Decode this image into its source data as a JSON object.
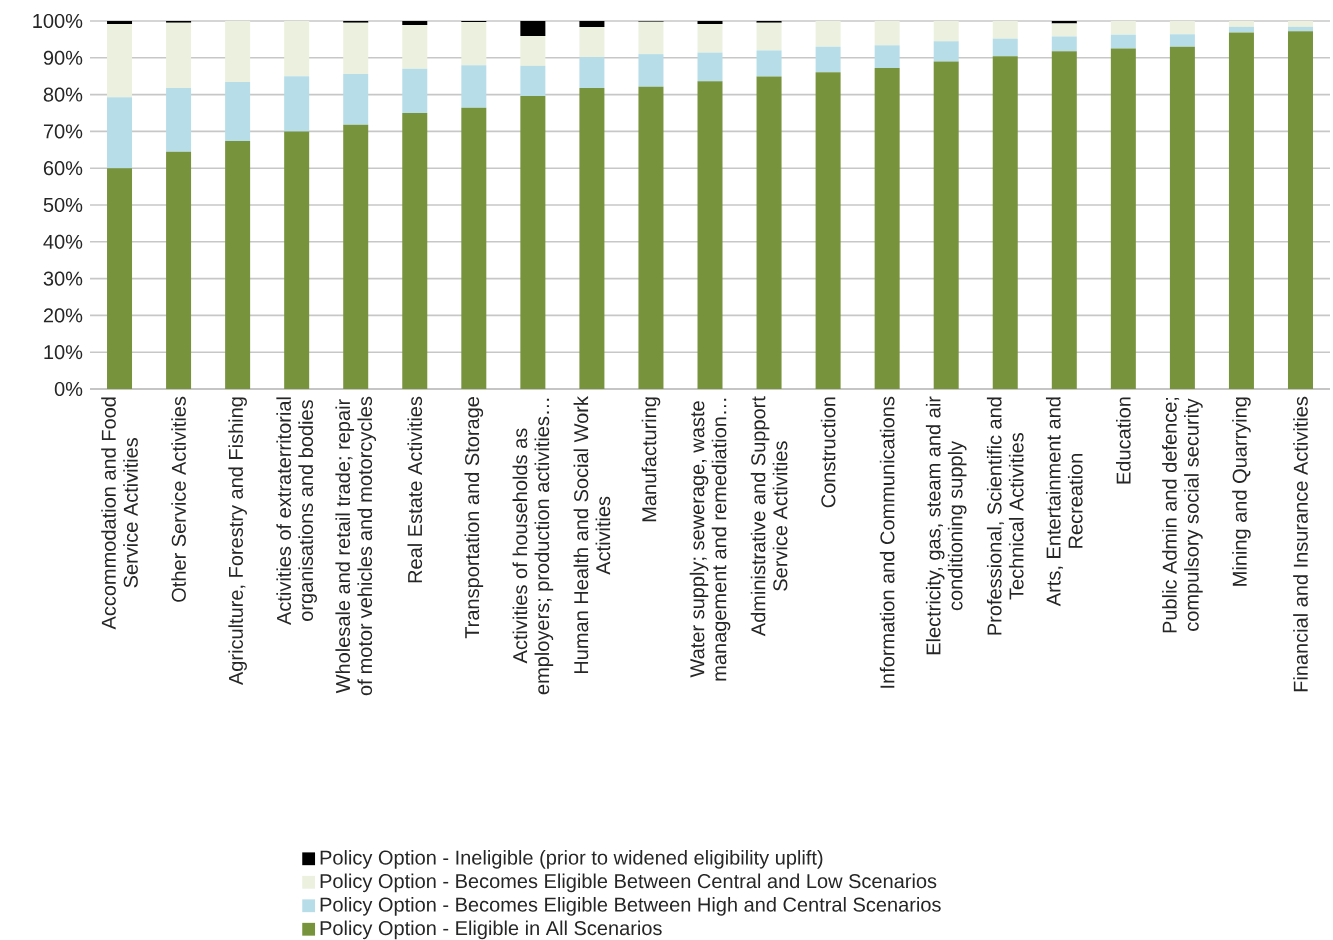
{
  "chart_data": {
    "type": "bar",
    "stacked": true,
    "categories": [
      "Accommodation and Food Service Activities",
      "Other Service Activities",
      "Agriculture, Forestry and Fishing",
      "Activities of extraterritorial organisations and bodies",
      "Wholesale and retail trade; repair of motor vehicles and motorcycles",
      "Real Estate Activities",
      "Transportation and Storage",
      "Activities of households as employers; production activities…",
      "Human Health and Social Work Activities",
      "Manufacturing",
      "Water supply; sewerage, waste management and remediation…",
      "Administrative and Support Service Activities",
      "Construction",
      "Information and Communications",
      "Electricity, gas, steam and air conditioning supply",
      "Professional, Scientific and Technical Activities",
      "Arts, Entertainment and Recreation",
      "Education",
      "Public Admin and defence; compulsory social security",
      "Mining and Quarrying",
      "Financial and Insurance Activities"
    ],
    "series": [
      {
        "name": "Policy Option  - Eligible in All Scenarios",
        "color": "#77933c",
        "values": [
          60,
          64.5,
          67.4,
          70,
          71.8,
          75,
          76.4,
          79.6,
          81.8,
          82.1,
          83.6,
          84.9,
          86.1,
          87.2,
          89,
          90.4,
          91.8,
          92.5,
          93,
          96.9,
          97.2
        ]
      },
      {
        "name": "Policy Option - Becomes Eligible Between High and Central Scenarios",
        "color": "#b7dde8",
        "values": [
          19.3,
          17.3,
          16,
          15,
          13.8,
          12,
          11.6,
          8.2,
          8.4,
          8.9,
          7.8,
          7.1,
          6.9,
          6.2,
          5.5,
          4.8,
          4,
          3.8,
          3.4,
          1.5,
          1.2
        ]
      },
      {
        "name": "Policy Option - Becomes Eligible Between Central and Low Scenarios",
        "color": "#ebf1de",
        "values": [
          19.9,
          17.7,
          16.6,
          15,
          13.9,
          11.9,
          11.7,
          8.1,
          8.2,
          8.8,
          7.8,
          7.5,
          7,
          6.6,
          5.5,
          4.8,
          3.5,
          3.7,
          3.6,
          1.6,
          1.6
        ]
      },
      {
        "name": "Policy Option - Ineligible (prior to widened eligibility uplift)",
        "color": "#000000",
        "values": [
          0.8,
          0.5,
          0,
          0,
          0.5,
          1.1,
          0.3,
          4.1,
          1.6,
          0.2,
          0.8,
          0.5,
          0,
          0,
          0,
          0,
          0.7,
          0,
          0,
          0,
          0
        ]
      }
    ],
    "ylim": [
      0,
      100
    ],
    "yticks": [
      {
        "value": 0,
        "label": "0%"
      },
      {
        "value": 10,
        "label": "10%"
      },
      {
        "value": 20,
        "label": "20%"
      },
      {
        "value": 30,
        "label": "30%"
      },
      {
        "value": 40,
        "label": "40%"
      },
      {
        "value": 50,
        "label": "50%"
      },
      {
        "value": 60,
        "label": "60%"
      },
      {
        "value": 70,
        "label": "70%"
      },
      {
        "value": 80,
        "label": "80%"
      },
      {
        "value": 90,
        "label": "90%"
      },
      {
        "value": 100,
        "label": "100%"
      }
    ],
    "grid": "y",
    "legend": "bottom"
  }
}
